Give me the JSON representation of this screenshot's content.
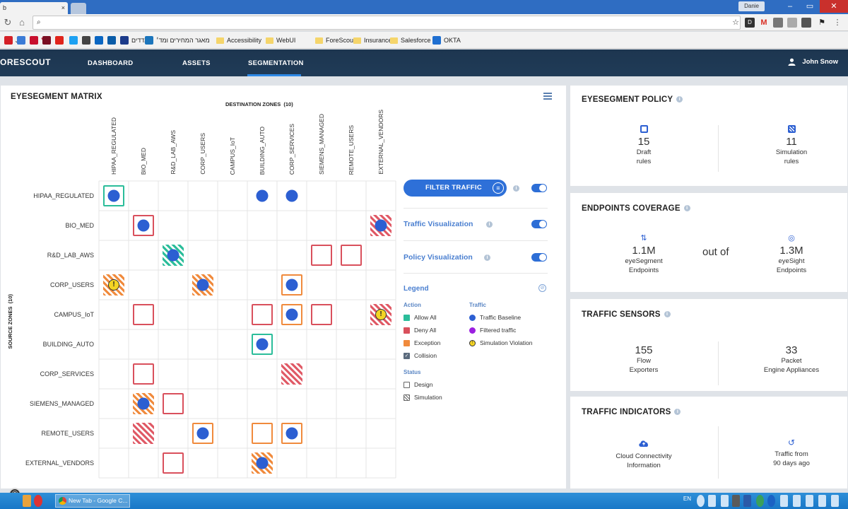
{
  "browser": {
    "tab_fragment": "b",
    "tab_close": "×",
    "user_chip": "Danie",
    "omnibox_value": "",
    "bookmarks": [
      {
        "label": "JP",
        "color": "#d42027"
      },
      {
        "label": "",
        "color": "#3b7bd6"
      },
      {
        "label": "Y",
        "color": "#c8102e"
      },
      {
        "label": "",
        "color": "#7a0f23"
      },
      {
        "label": "",
        "color": "#e0241b"
      },
      {
        "label": "",
        "color": "#1da1f2"
      },
      {
        "label": "",
        "color": "#444"
      },
      {
        "label": "",
        "color": "#0a66c2"
      },
      {
        "label": "",
        "color": "#0a5ca8"
      },
      {
        "label": "מדדים",
        "color": "#1c3b8a"
      },
      {
        "label": "מאגר המחירים ומד׳",
        "color": "#1b75bc"
      },
      {
        "label": "Accessibility",
        "color": "folder"
      },
      {
        "label": "WebUI",
        "color": "folder"
      },
      {
        "label": "ForeScout",
        "color": "folder"
      },
      {
        "label": "Insurance",
        "color": "folder"
      },
      {
        "label": "Salesforce",
        "color": "folder"
      },
      {
        "label": "OKTA",
        "color": "#1f6fd1"
      }
    ]
  },
  "app": {
    "logo": "ORESCOUT",
    "nav": [
      {
        "label": "DASHBOARD",
        "active": false
      },
      {
        "label": "ASSETS",
        "active": false
      },
      {
        "label": "SEGMENTATION",
        "active": true
      }
    ],
    "user": "John Snow"
  },
  "matrix": {
    "title": "EYESEGMENT MATRIX",
    "destination_title": "DESTINATION ZONES  (10)",
    "source_title": "SOURCE ZONES  (10)",
    "columns": [
      "HIPAA_REGULATED",
      "BIO_MED",
      "R&D_LAB_AWS",
      "CORP_USERS",
      "CAMPUS_IoT",
      "BUILDING_AUTO",
      "CORP_SERVICES",
      "SIEMENS_MANAGED",
      "REMOTE_USERS",
      "EXTERNAL_VENDORS"
    ],
    "rows": [
      "HIPAA_REGULATED",
      "BIO_MED",
      "R&D_LAB_AWS",
      "CORP_USERS",
      "CAMPUS_IoT",
      "BUILDING_AUTO",
      "CORP_SERVICES",
      "SIEMENS_MANAGED",
      "REMOTE_USERS",
      "EXTERNAL_VENDORS"
    ],
    "cells": [
      {
        "r": 0,
        "c": 0,
        "style": "green",
        "mark": "dot"
      },
      {
        "r": 0,
        "c": 5,
        "style": "none",
        "mark": "dot"
      },
      {
        "r": 0,
        "c": 6,
        "style": "none",
        "mark": "dot"
      },
      {
        "r": 1,
        "c": 1,
        "style": "red",
        "mark": "dot"
      },
      {
        "r": 1,
        "c": 9,
        "style": "hatch-red",
        "mark": "dot"
      },
      {
        "r": 2,
        "c": 2,
        "style": "hatch-green",
        "mark": "dot"
      },
      {
        "r": 2,
        "c": 7,
        "style": "red",
        "mark": ""
      },
      {
        "r": 2,
        "c": 8,
        "style": "red",
        "mark": ""
      },
      {
        "r": 3,
        "c": 0,
        "style": "hatch-orange",
        "mark": "warn"
      },
      {
        "r": 3,
        "c": 3,
        "style": "hatch-orange",
        "mark": "dot"
      },
      {
        "r": 3,
        "c": 6,
        "style": "orange",
        "mark": "dot"
      },
      {
        "r": 4,
        "c": 1,
        "style": "red",
        "mark": ""
      },
      {
        "r": 4,
        "c": 5,
        "style": "red",
        "mark": ""
      },
      {
        "r": 4,
        "c": 6,
        "style": "orange",
        "mark": "dot"
      },
      {
        "r": 4,
        "c": 7,
        "style": "red",
        "mark": ""
      },
      {
        "r": 4,
        "c": 9,
        "style": "hatch-red",
        "mark": "warn"
      },
      {
        "r": 5,
        "c": 5,
        "style": "green",
        "mark": "dot"
      },
      {
        "r": 6,
        "c": 1,
        "style": "red",
        "mark": ""
      },
      {
        "r": 6,
        "c": 6,
        "style": "hatch-red",
        "mark": ""
      },
      {
        "r": 7,
        "c": 1,
        "style": "hatch-orange",
        "mark": "dot"
      },
      {
        "r": 7,
        "c": 2,
        "style": "red",
        "mark": ""
      },
      {
        "r": 8,
        "c": 1,
        "style": "hatch-red",
        "mark": ""
      },
      {
        "r": 8,
        "c": 3,
        "style": "orange",
        "mark": "dot"
      },
      {
        "r": 8,
        "c": 5,
        "style": "orange",
        "mark": ""
      },
      {
        "r": 8,
        "c": 6,
        "style": "orange",
        "mark": "dot"
      },
      {
        "r": 9,
        "c": 2,
        "style": "red",
        "mark": ""
      },
      {
        "r": 9,
        "c": 5,
        "style": "hatch-orange",
        "mark": "dot"
      }
    ],
    "filter_button": "FILTER TRAFFIC",
    "traffic_visualization": "Traffic Visualization",
    "policy_visualization": "Policy Visualization",
    "legend": {
      "title": "Legend",
      "action_title": "Action",
      "traffic_title": "Traffic",
      "status_title": "Status",
      "actions": [
        {
          "label": "Allow All",
          "color": "#2bbd9a"
        },
        {
          "label": "Deny All",
          "color": "#d9505c"
        },
        {
          "label": "Exception",
          "color": "#f08a3c"
        },
        {
          "label": "Collision",
          "color": "#5b6b7d"
        }
      ],
      "traffic": [
        {
          "label": "Traffic Baseline",
          "color": "#2c5fd2"
        },
        {
          "label": "Filtered traffic",
          "color": "#9b1fe0"
        },
        {
          "label": "Simulation Violation",
          "color": "#f4d424"
        }
      ],
      "status": [
        {
          "label": "Design"
        },
        {
          "label": "Simulation"
        }
      ]
    }
  },
  "policy": {
    "title": "EYESEGMENT POLICY",
    "draft": {
      "value": "15",
      "label1": "Draft",
      "label2": "rules"
    },
    "simulation": {
      "value": "11",
      "label1": "Simulation",
      "label2": "rules"
    }
  },
  "coverage": {
    "title": "ENDPOINTS COVERAGE",
    "segment": {
      "value": "1.1M",
      "label1": "eyeSegment",
      "label2": "Endpoints"
    },
    "connector": "out of",
    "sight": {
      "value": "1.3M",
      "label1": "eyeSight",
      "label2": "Endpoints"
    }
  },
  "sensors": {
    "title": "TRAFFIC SENSORS",
    "flow": {
      "value": "155",
      "label1": "Flow",
      "label2": "Exporters"
    },
    "packet": {
      "value": "33",
      "label1": "Packet",
      "label2": "Engine Appliances"
    }
  },
  "indicators": {
    "title": "TRAFFIC INDICATORS",
    "cloud": {
      "label1": "Cloud Connectivity",
      "label2": "Information"
    },
    "history": {
      "label1": "Traffic from",
      "label2": "90 days ago"
    }
  },
  "taskbar": {
    "chrome_label": "New Tab - Google C...",
    "lang": "EN"
  }
}
